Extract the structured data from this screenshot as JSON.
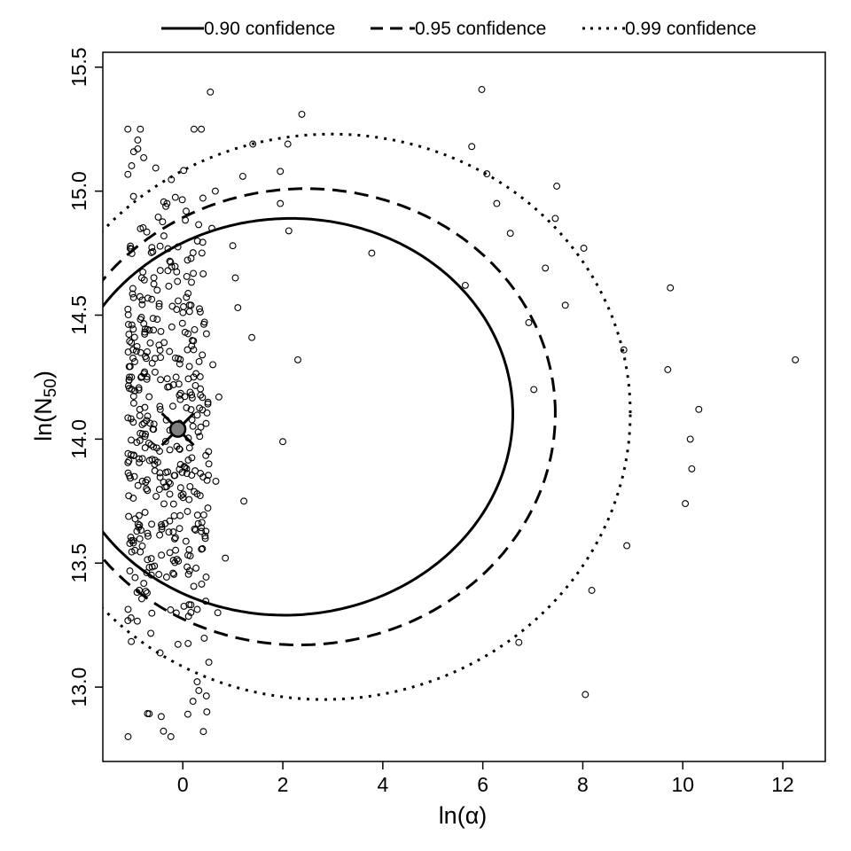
{
  "chart_data": {
    "type": "scatter",
    "xlabel": "ln(α)",
    "ylabel_main": "ln(N",
    "ylabel_sub": "50",
    "ylabel_close": ")",
    "xlim": [
      -1.6,
      12.85
    ],
    "ylim": [
      12.7,
      15.56
    ],
    "xticks": [
      0,
      2,
      4,
      6,
      8,
      10,
      12
    ],
    "yticks": [
      13.0,
      13.5,
      14.0,
      14.5,
      15.0,
      15.5
    ],
    "ytick_labels": [
      "13.0",
      "13.5",
      "14.0",
      "14.5",
      "15.0",
      "15.5"
    ],
    "grid": false,
    "legend_position": "top-outside",
    "legend": [
      {
        "label": "0.90 confidence",
        "style": "solid"
      },
      {
        "label": "0.95 confidence",
        "style": "dashed"
      },
      {
        "label": "0.99 confidence",
        "style": "dotted"
      }
    ],
    "estimate": {
      "x": -0.1,
      "y": 14.04
    },
    "ellipses": [
      {
        "level": "0.90",
        "style": "solid",
        "cx": 2.1,
        "cy": 14.09,
        "ax": 4.5,
        "ay": 0.8,
        "tilt_deg": 7
      },
      {
        "level": "0.95",
        "style": "dashed",
        "cx": 2.4,
        "cy": 14.09,
        "ax": 5.05,
        "ay": 0.92,
        "tilt_deg": 7
      },
      {
        "level": "0.99",
        "style": "dotted",
        "cx": 2.9,
        "cy": 14.09,
        "ax": 6.05,
        "ay": 1.14,
        "tilt_deg": 7
      }
    ],
    "outliers": [
      [
        0.55,
        15.4
      ],
      [
        0.65,
        15.0
      ],
      [
        0.58,
        14.85
      ],
      [
        0.6,
        14.3
      ],
      [
        0.72,
        14.17
      ],
      [
        0.52,
        13.9
      ],
      [
        0.66,
        13.83
      ],
      [
        0.45,
        13.6
      ],
      [
        0.52,
        13.1
      ],
      [
        0.48,
        12.9
      ],
      [
        0.7,
        13.3
      ],
      [
        0.85,
        13.52
      ],
      [
        1.0,
        14.78
      ],
      [
        1.05,
        14.65
      ],
      [
        1.1,
        14.53
      ],
      [
        1.22,
        13.75
      ],
      [
        1.2,
        15.06
      ],
      [
        1.38,
        14.41
      ],
      [
        1.4,
        15.19
      ],
      [
        1.95,
        15.08
      ],
      [
        1.95,
        14.95
      ],
      [
        2.0,
        13.99
      ],
      [
        2.1,
        15.19
      ],
      [
        2.12,
        14.84
      ],
      [
        2.3,
        14.32
      ],
      [
        2.38,
        15.31
      ],
      [
        3.78,
        14.75
      ],
      [
        5.65,
        14.62
      ],
      [
        5.78,
        15.18
      ],
      [
        5.98,
        15.41
      ],
      [
        6.08,
        15.07
      ],
      [
        6.28,
        14.95
      ],
      [
        6.55,
        14.83
      ],
      [
        6.72,
        13.18
      ],
      [
        6.92,
        14.47
      ],
      [
        7.02,
        14.2
      ],
      [
        7.25,
        14.69
      ],
      [
        7.45,
        14.89
      ],
      [
        7.48,
        15.02
      ],
      [
        7.65,
        14.54
      ],
      [
        8.02,
        14.77
      ],
      [
        8.05,
        12.97
      ],
      [
        8.18,
        13.39
      ],
      [
        8.82,
        14.36
      ],
      [
        8.88,
        13.57
      ],
      [
        9.7,
        14.28
      ],
      [
        9.75,
        14.61
      ],
      [
        10.05,
        13.74
      ],
      [
        10.15,
        14.0
      ],
      [
        10.18,
        13.88
      ],
      [
        10.32,
        14.12
      ],
      [
        12.25,
        14.32
      ]
    ]
  }
}
